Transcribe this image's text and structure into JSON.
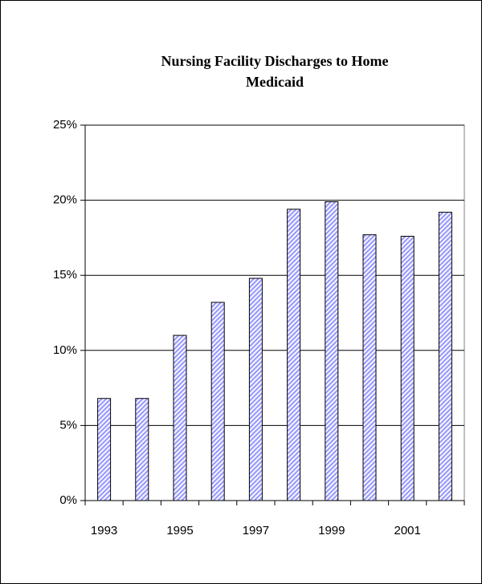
{
  "chart_data": {
    "type": "bar",
    "title": [
      "Nursing Facility Discharges to Home",
      "Medicaid"
    ],
    "categories": [
      "1993",
      null,
      "1995",
      null,
      "1997",
      null,
      "1999",
      null,
      "2001",
      null
    ],
    "values": [
      6.8,
      6.8,
      11.0,
      13.2,
      14.8,
      19.4,
      19.9,
      17.7,
      17.6,
      19.2
    ],
    "color": "#9999ff",
    "ylim": [
      0,
      25
    ],
    "yticks": [
      {
        "value": 0,
        "label": "0%"
      },
      {
        "value": 5,
        "label": "5%"
      },
      {
        "value": 10,
        "label": "10%"
      },
      {
        "value": 15,
        "label": "15%"
      },
      {
        "value": 20,
        "label": "20%"
      },
      {
        "value": 25,
        "label": "25%"
      }
    ],
    "grid": true
  }
}
